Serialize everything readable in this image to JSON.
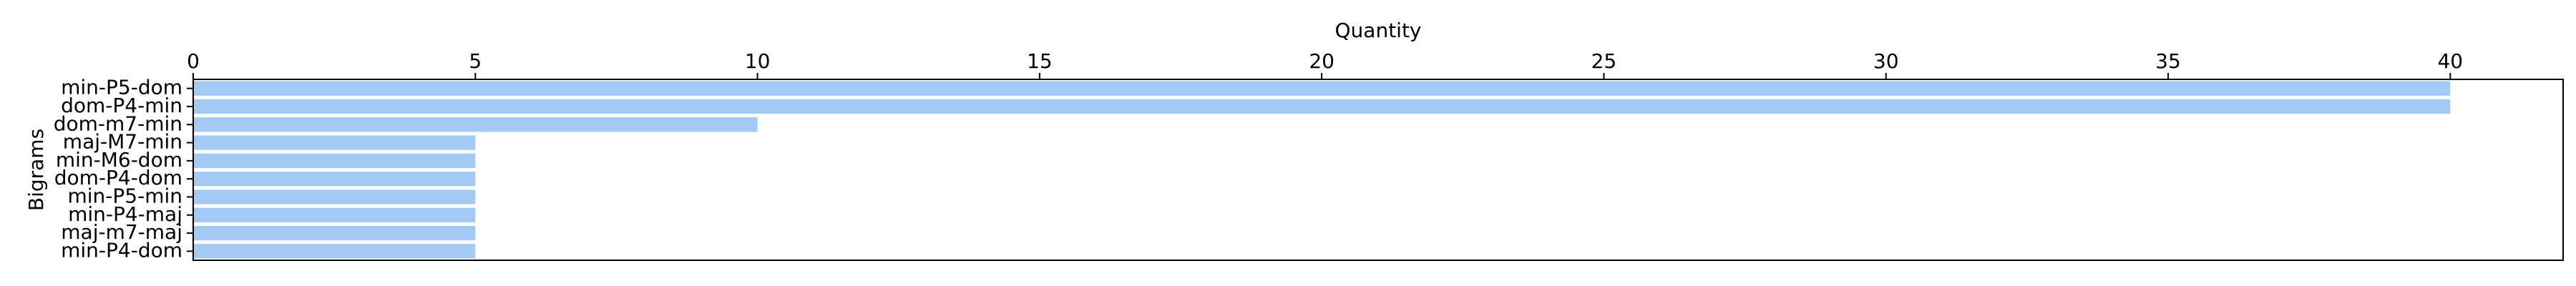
{
  "chart_data": {
    "type": "bar",
    "orientation": "horizontal",
    "categories": [
      "min-P5-dom",
      "dom-P4-min",
      "dom-m7-min",
      "maj-M7-min",
      "min-M6-dom",
      "dom-P4-dom",
      "min-P5-min",
      "min-P4-maj",
      "maj-m7-maj",
      "min-P4-dom"
    ],
    "values": [
      40,
      40,
      10,
      5,
      5,
      5,
      5,
      5,
      5,
      5
    ],
    "xlabel": "Quantity",
    "ylabel": "Bigrams",
    "xlim": [
      0,
      42
    ],
    "x_ticks": [
      0,
      5,
      10,
      15,
      20,
      25,
      30,
      35,
      40
    ],
    "x_axis_position": "top",
    "grid": false,
    "bar_color": "#a1c9f4"
  }
}
